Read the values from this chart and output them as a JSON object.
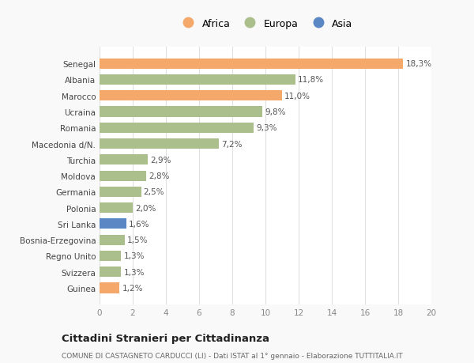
{
  "countries": [
    "Guinea",
    "Svizzera",
    "Regno Unito",
    "Bosnia-Erzegovina",
    "Sri Lanka",
    "Polonia",
    "Germania",
    "Moldova",
    "Turchia",
    "Macedonia d/N.",
    "Romania",
    "Ucraina",
    "Marocco",
    "Albania",
    "Senegal"
  ],
  "values": [
    1.2,
    1.3,
    1.3,
    1.5,
    1.6,
    2.0,
    2.5,
    2.8,
    2.9,
    7.2,
    9.3,
    9.8,
    11.0,
    11.8,
    18.3
  ],
  "labels": [
    "1,2%",
    "1,3%",
    "1,3%",
    "1,5%",
    "1,6%",
    "2,0%",
    "2,5%",
    "2,8%",
    "2,9%",
    "7,2%",
    "9,3%",
    "9,8%",
    "11,0%",
    "11,8%",
    "18,3%"
  ],
  "continents": [
    "Africa",
    "Europa",
    "Europa",
    "Europa",
    "Asia",
    "Europa",
    "Europa",
    "Europa",
    "Europa",
    "Europa",
    "Europa",
    "Europa",
    "Africa",
    "Europa",
    "Africa"
  ],
  "africa_color": "#F4A96A",
  "europa_color": "#AABF8C",
  "asia_color": "#5B87C5",
  "xlim": [
    0,
    20
  ],
  "xticks": [
    0,
    2,
    4,
    6,
    8,
    10,
    12,
    14,
    16,
    18,
    20
  ],
  "title": "Cittadini Stranieri per Cittadinanza",
  "subtitle": "COMUNE DI CASTAGNETO CARDUCCI (LI) - Dati ISTAT al 1° gennaio - Elaborazione TUTTITALIA.IT",
  "background_color": "#f9f9f9",
  "plot_bg_color": "#ffffff",
  "grid_color": "#e0e0e0"
}
